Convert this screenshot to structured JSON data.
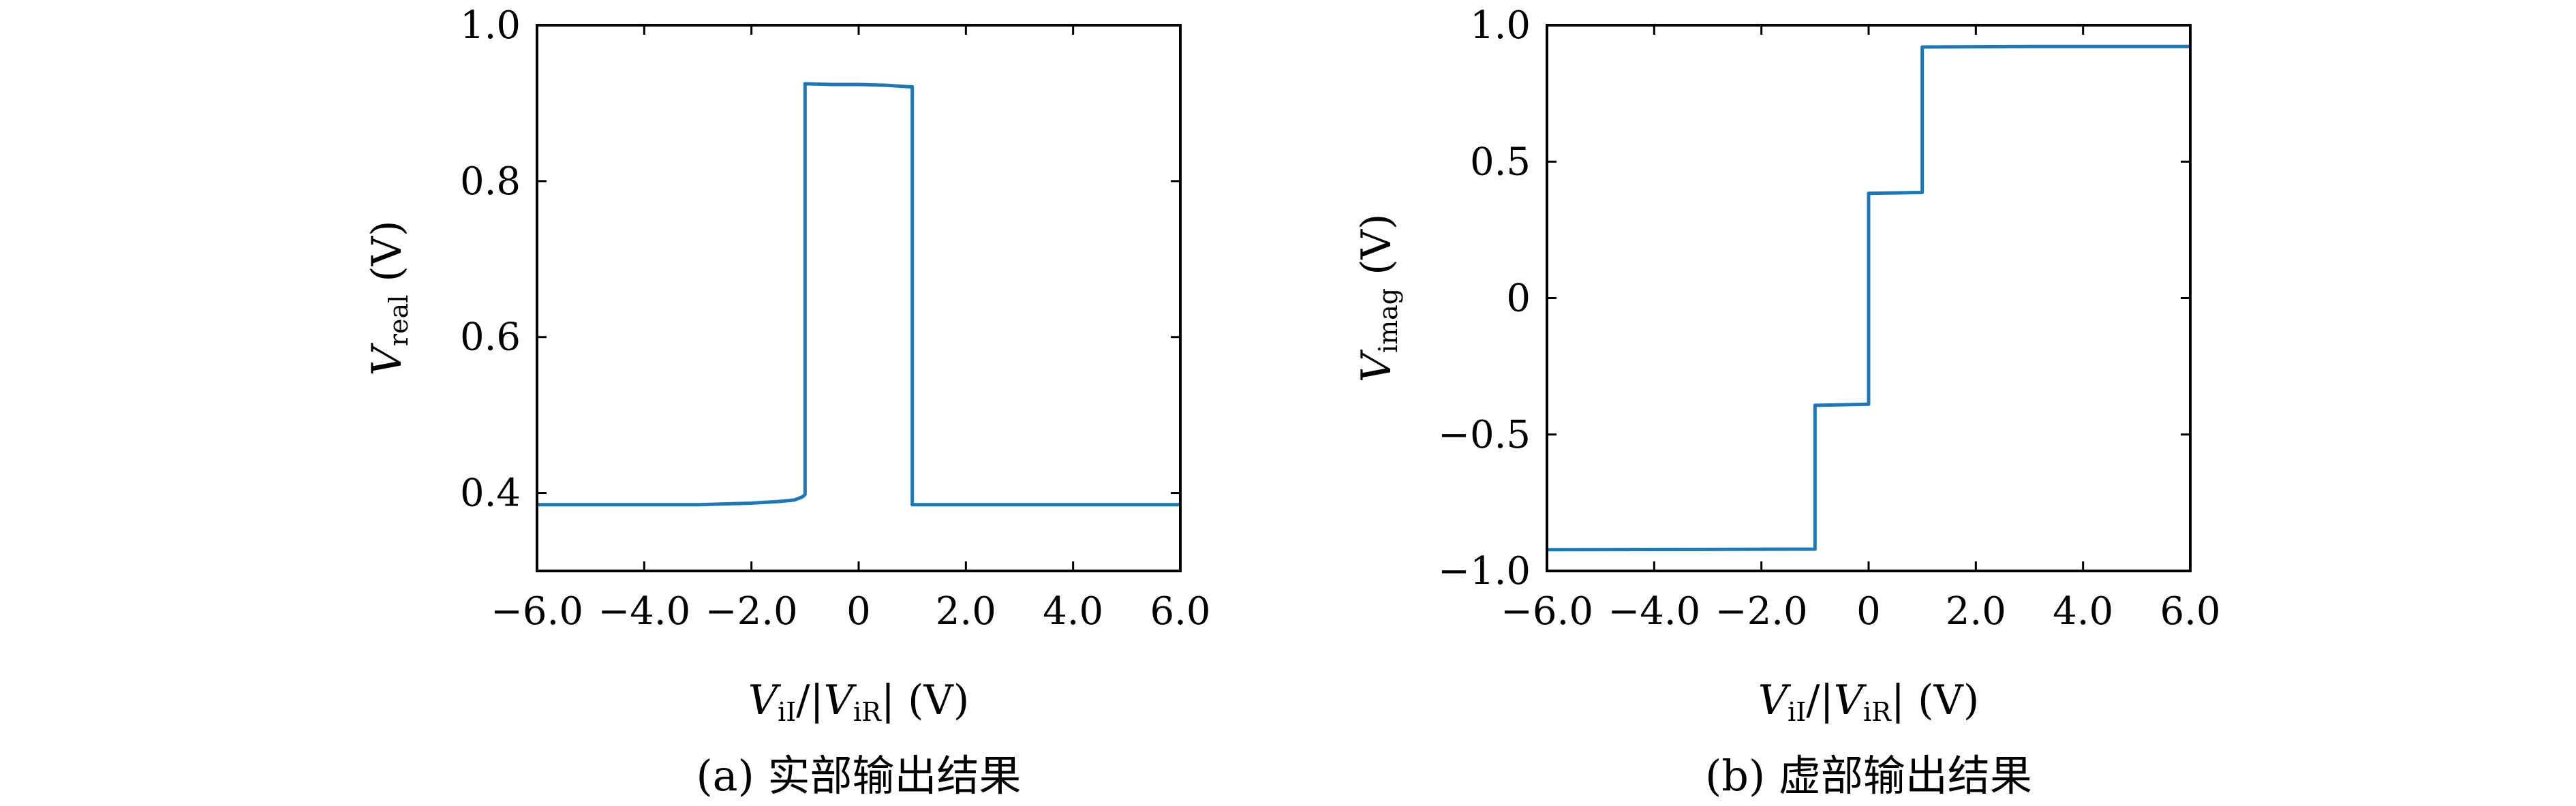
{
  "chart_data": [
    {
      "type": "line",
      "caption": "(a) 实部输出结果",
      "xlabel": "V_iI/|V_iR| (V)",
      "ylabel": "V_real (V)",
      "xlim": [
        -6.0,
        6.0
      ],
      "ylim": [
        0.3,
        1.0
      ],
      "xticks": [
        -6.0,
        -4.0,
        -2.0,
        0,
        2.0,
        4.0,
        6.0
      ],
      "xtick_labels": [
        "−6.0",
        "−4.0",
        "−2.0",
        "0",
        "2.0",
        "4.0",
        "6.0"
      ],
      "yticks": [
        0.4,
        0.6,
        0.8,
        1.0
      ],
      "ytick_labels": [
        "0.4",
        "0.6",
        "0.8",
        "1.0"
      ],
      "grid": false,
      "color": "#1f77b4",
      "series": [
        {
          "x": [
            -6.0,
            -4.0,
            -3.0,
            -2.5,
            -2.0,
            -1.5,
            -1.2,
            -1.05,
            -1.0,
            -1.0,
            -0.5,
            0,
            0.5,
            0.95,
            1.0,
            1.0,
            1.05,
            2.0,
            4.0,
            6.0
          ],
          "y": [
            0.385,
            0.385,
            0.385,
            0.386,
            0.387,
            0.389,
            0.391,
            0.395,
            0.398,
            0.925,
            0.924,
            0.924,
            0.923,
            0.921,
            0.921,
            0.385,
            0.385,
            0.385,
            0.385,
            0.385
          ]
        }
      ]
    },
    {
      "type": "line",
      "caption": "(b) 虚部输出结果",
      "xlabel": "V_iI/|V_iR| (V)",
      "ylabel": "V_imag (V)",
      "xlim": [
        -6.0,
        6.0
      ],
      "ylim": [
        -1.0,
        1.0
      ],
      "xticks": [
        -6.0,
        -4.0,
        -2.0,
        0,
        2.0,
        4.0,
        6.0
      ],
      "xtick_labels": [
        "−6.0",
        "−4.0",
        "−2.0",
        "0",
        "2.0",
        "4.0",
        "6.0"
      ],
      "yticks": [
        -1.0,
        -0.5,
        0,
        0.5,
        1.0
      ],
      "ytick_labels": [
        "−1.0",
        "−0.5",
        "0",
        "0.5",
        "1.0"
      ],
      "grid": false,
      "color": "#1f77b4",
      "series": [
        {
          "x": [
            -6.0,
            -3.0,
            -1.0,
            -1.0,
            0,
            0,
            1.0,
            1.0,
            3.0,
            6.0
          ],
          "y": [
            -0.922,
            -0.921,
            -0.92,
            -0.393,
            -0.389,
            0.384,
            0.387,
            0.92,
            0.922,
            0.922
          ]
        }
      ]
    }
  ]
}
